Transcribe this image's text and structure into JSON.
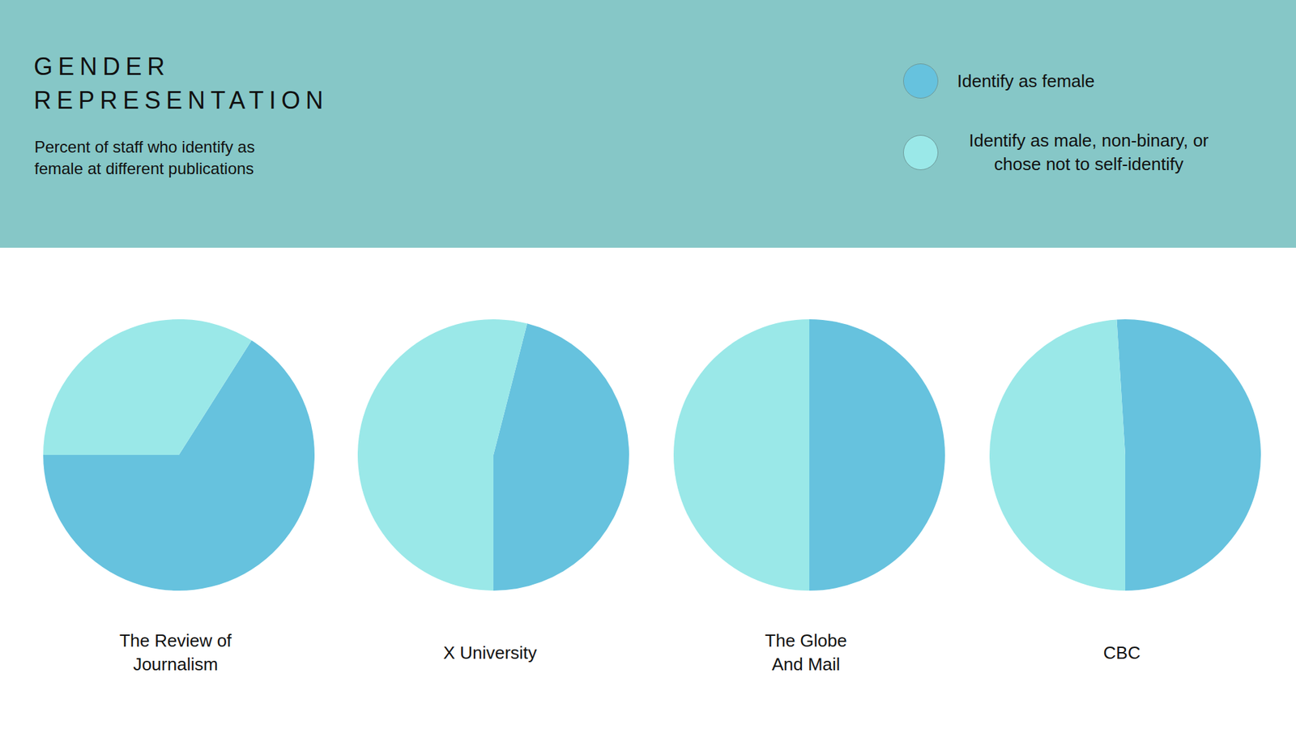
{
  "title": "GENDER REPRESENTATION",
  "subtitle": "Percent of staff who identify as female at different publications",
  "chart_data": [
    {
      "type": "pie",
      "title": "The Review of Journalism",
      "categories": [
        "Identify as female",
        "Identify as male, non-binary, or chose not to self-identify"
      ],
      "values": [
        66,
        34
      ],
      "colors": [
        "#66c2de",
        "#9ae8e8"
      ]
    },
    {
      "type": "pie",
      "title": "X University",
      "categories": [
        "Identify as female",
        "Identify as male, non-binary, or chose not to self-identify"
      ],
      "values": [
        46,
        54
      ],
      "colors": [
        "#66c2de",
        "#9ae8e8"
      ]
    },
    {
      "type": "pie",
      "title": "The Globe And Mail",
      "categories": [
        "Identify as female",
        "Identify as male, non-binary, or chose not to self-identify"
      ],
      "values": [
        50,
        50
      ],
      "colors": [
        "#66c2de",
        "#9ae8e8"
      ]
    },
    {
      "type": "pie",
      "title": "CBC",
      "categories": [
        "Identify as female",
        "Identify as male, non-binary, or chose not to self-identify"
      ],
      "values": [
        51,
        49
      ],
      "colors": [
        "#66c2de",
        "#9ae8e8"
      ]
    }
  ]
}
